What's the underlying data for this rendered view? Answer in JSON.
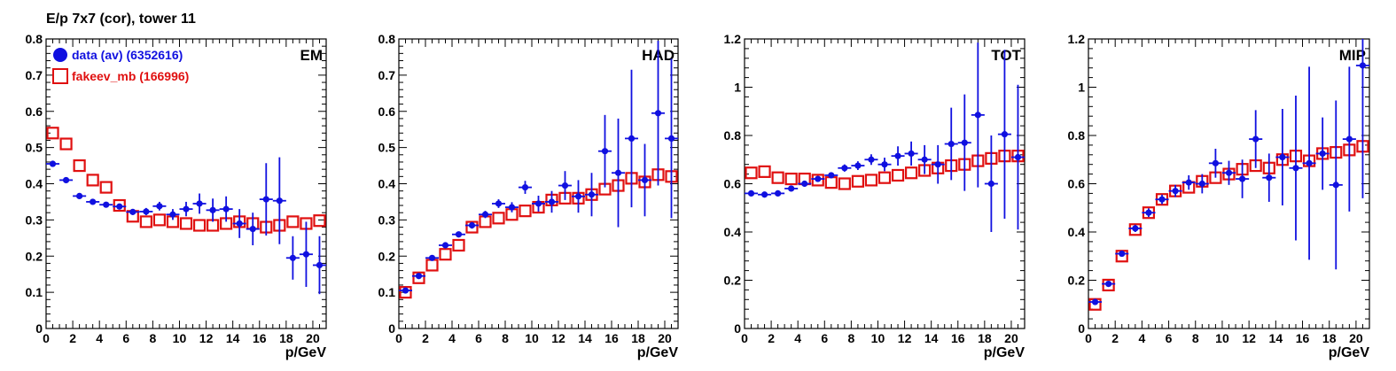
{
  "page_title": "E/p 7x7 (cor), tower 11",
  "legend": [
    {
      "label": "data (av) (6352616)",
      "color": "#1010e0",
      "marker": "filled-circle"
    },
    {
      "label": "fakeev_mb (166996)",
      "color": "#e01010",
      "marker": "open-square"
    }
  ],
  "chart_data": [
    {
      "type": "scatter",
      "title": "EM",
      "xlabel": "p/GeV",
      "ylabel": "",
      "xlim": [
        0,
        21
      ],
      "ylim": [
        0,
        0.8
      ],
      "xticks": [
        0,
        2,
        4,
        6,
        8,
        10,
        12,
        14,
        16,
        18,
        20
      ],
      "yticks": [
        0,
        0.1,
        0.2,
        0.3,
        0.4,
        0.5,
        0.6,
        0.7,
        0.8
      ],
      "ytick_labels": [
        "0",
        "0.1",
        "0.2",
        "0.3",
        "0.4",
        "0.5",
        "0.6",
        "0.7",
        "0.8"
      ],
      "series": [
        {
          "name": "data (av) (6352616)",
          "x": [
            0.5,
            1.5,
            2.5,
            3.5,
            4.5,
            5.5,
            6.5,
            7.5,
            8.5,
            9.5,
            10.5,
            11.5,
            12.5,
            13.5,
            14.5,
            15.5,
            16.5,
            17.5,
            18.5,
            19.5,
            20.5
          ],
          "y": [
            0.455,
            0.41,
            0.366,
            0.35,
            0.342,
            0.337,
            0.322,
            0.323,
            0.338,
            0.315,
            0.33,
            0.345,
            0.327,
            0.33,
            0.29,
            0.275,
            0.357,
            0.353,
            0.195,
            0.205,
            0.175
          ],
          "err": [
            0.005,
            0.004,
            0.004,
            0.004,
            0.005,
            0.006,
            0.008,
            0.01,
            0.012,
            0.015,
            0.02,
            0.028,
            0.032,
            0.035,
            0.04,
            0.045,
            0.1,
            0.12,
            0.06,
            0.09,
            0.08
          ]
        },
        {
          "name": "fakeev_mb (166996)",
          "x": [
            0.5,
            1.5,
            2.5,
            3.5,
            4.5,
            5.5,
            6.5,
            7.5,
            8.5,
            9.5,
            10.5,
            11.5,
            12.5,
            13.5,
            14.5,
            15.5,
            16.5,
            17.5,
            18.5,
            19.5,
            20.5
          ],
          "y": [
            0.54,
            0.51,
            0.45,
            0.41,
            0.39,
            0.34,
            0.31,
            0.295,
            0.3,
            0.295,
            0.29,
            0.285,
            0.285,
            0.29,
            0.295,
            0.29,
            0.28,
            0.285,
            0.295,
            0.29,
            0.298
          ],
          "err": [
            0,
            0,
            0,
            0,
            0,
            0,
            0,
            0,
            0,
            0,
            0,
            0,
            0,
            0,
            0,
            0,
            0,
            0,
            0,
            0,
            0
          ]
        }
      ]
    },
    {
      "type": "scatter",
      "title": "HAD",
      "xlabel": "p/GeV",
      "ylabel": "",
      "xlim": [
        0,
        21
      ],
      "ylim": [
        0,
        0.8
      ],
      "xticks": [
        0,
        2,
        4,
        6,
        8,
        10,
        12,
        14,
        16,
        18,
        20
      ],
      "yticks": [
        0,
        0.1,
        0.2,
        0.3,
        0.4,
        0.5,
        0.6,
        0.7,
        0.8
      ],
      "ytick_labels": [
        "0",
        "0.1",
        "0.2",
        "0.3",
        "0.4",
        "0.5",
        "0.6",
        "0.7",
        "0.8"
      ],
      "series": [
        {
          "name": "data (av) (6352616)",
          "x": [
            0.5,
            1.5,
            2.5,
            3.5,
            4.5,
            5.5,
            6.5,
            7.5,
            8.5,
            9.5,
            10.5,
            11.5,
            12.5,
            13.5,
            14.5,
            15.5,
            16.5,
            17.5,
            18.5,
            19.5,
            20.5
          ],
          "y": [
            0.105,
            0.145,
            0.195,
            0.23,
            0.26,
            0.285,
            0.315,
            0.345,
            0.335,
            0.39,
            0.345,
            0.35,
            0.395,
            0.365,
            0.37,
            0.49,
            0.43,
            0.525,
            0.41,
            0.595,
            0.525
          ],
          "err": [
            0.003,
            0.004,
            0.005,
            0.006,
            0.007,
            0.009,
            0.01,
            0.012,
            0.014,
            0.018,
            0.022,
            0.03,
            0.04,
            0.045,
            0.06,
            0.1,
            0.15,
            0.19,
            0.1,
            0.2,
            0.22
          ]
        },
        {
          "name": "fakeev_mb (166996)",
          "x": [
            0.5,
            1.5,
            2.5,
            3.5,
            4.5,
            5.5,
            6.5,
            7.5,
            8.5,
            9.5,
            10.5,
            11.5,
            12.5,
            13.5,
            14.5,
            15.5,
            16.5,
            17.5,
            18.5,
            19.5,
            20.5
          ],
          "y": [
            0.1,
            0.14,
            0.175,
            0.205,
            0.23,
            0.28,
            0.295,
            0.305,
            0.315,
            0.325,
            0.335,
            0.355,
            0.36,
            0.36,
            0.37,
            0.385,
            0.395,
            0.415,
            0.405,
            0.425,
            0.42
          ],
          "err": [
            0,
            0,
            0,
            0,
            0,
            0,
            0,
            0,
            0,
            0,
            0,
            0,
            0,
            0,
            0,
            0,
            0,
            0,
            0,
            0,
            0
          ]
        }
      ]
    },
    {
      "type": "scatter",
      "title": "TOT",
      "xlabel": "p/GeV",
      "ylabel": "",
      "xlim": [
        0,
        21
      ],
      "ylim": [
        0,
        1.2
      ],
      "xticks": [
        0,
        2,
        4,
        6,
        8,
        10,
        12,
        14,
        16,
        18,
        20
      ],
      "yticks": [
        0,
        0.2,
        0.4,
        0.6,
        0.8,
        1.0,
        1.2
      ],
      "ytick_labels": [
        "0",
        "0.2",
        "0.4",
        "0.6",
        "0.8",
        "1",
        "1.2"
      ],
      "series": [
        {
          "name": "data (av) (6352616)",
          "x": [
            0.5,
            1.5,
            2.5,
            3.5,
            4.5,
            5.5,
            6.5,
            7.5,
            8.5,
            9.5,
            10.5,
            11.5,
            12.5,
            13.5,
            14.5,
            15.5,
            16.5,
            17.5,
            18.5,
            19.5,
            20.5
          ],
          "y": [
            0.56,
            0.555,
            0.56,
            0.58,
            0.6,
            0.62,
            0.635,
            0.665,
            0.675,
            0.7,
            0.68,
            0.715,
            0.725,
            0.7,
            0.68,
            0.765,
            0.77,
            0.885,
            0.6,
            0.805,
            0.71
          ],
          "err": [
            0.005,
            0.005,
            0.006,
            0.007,
            0.008,
            0.01,
            0.012,
            0.015,
            0.018,
            0.022,
            0.028,
            0.04,
            0.05,
            0.06,
            0.08,
            0.15,
            0.2,
            0.3,
            0.2,
            0.35,
            0.3
          ]
        },
        {
          "name": "fakeev_mb (166996)",
          "x": [
            0.5,
            1.5,
            2.5,
            3.5,
            4.5,
            5.5,
            6.5,
            7.5,
            8.5,
            9.5,
            10.5,
            11.5,
            12.5,
            13.5,
            14.5,
            15.5,
            16.5,
            17.5,
            18.5,
            19.5,
            20.5
          ],
          "y": [
            0.645,
            0.65,
            0.625,
            0.62,
            0.62,
            0.615,
            0.605,
            0.6,
            0.61,
            0.615,
            0.625,
            0.635,
            0.645,
            0.655,
            0.665,
            0.675,
            0.68,
            0.695,
            0.705,
            0.715,
            0.715
          ],
          "err": [
            0,
            0,
            0,
            0,
            0,
            0,
            0,
            0,
            0,
            0,
            0,
            0,
            0,
            0,
            0,
            0,
            0,
            0,
            0,
            0,
            0
          ]
        }
      ]
    },
    {
      "type": "scatter",
      "title": "MIP",
      "xlabel": "p/GeV",
      "ylabel": "",
      "xlim": [
        0,
        21
      ],
      "ylim": [
        0,
        1.2
      ],
      "xticks": [
        0,
        2,
        4,
        6,
        8,
        10,
        12,
        14,
        16,
        18,
        20
      ],
      "yticks": [
        0,
        0.2,
        0.4,
        0.6,
        0.8,
        1.0,
        1.2
      ],
      "ytick_labels": [
        "0",
        "0.2",
        "0.4",
        "0.6",
        "0.8",
        "1",
        "1.2"
      ],
      "series": [
        {
          "name": "data (av) (6352616)",
          "x": [
            0.5,
            1.5,
            2.5,
            3.5,
            4.5,
            5.5,
            6.5,
            7.5,
            8.5,
            9.5,
            10.5,
            11.5,
            12.5,
            13.5,
            14.5,
            15.5,
            16.5,
            17.5,
            18.5,
            19.5,
            20.5
          ],
          "y": [
            0.11,
            0.185,
            0.31,
            0.415,
            0.48,
            0.535,
            0.57,
            0.605,
            0.6,
            0.685,
            0.645,
            0.62,
            0.785,
            0.625,
            0.71,
            0.665,
            0.685,
            0.725,
            0.595,
            0.785,
            1.09
          ],
          "err": [
            0.005,
            0.008,
            0.012,
            0.015,
            0.018,
            0.02,
            0.025,
            0.03,
            0.04,
            0.06,
            0.05,
            0.08,
            0.12,
            0.1,
            0.2,
            0.3,
            0.4,
            0.15,
            0.35,
            0.3,
            0.55
          ]
        },
        {
          "name": "fakeev_mb (166996)",
          "x": [
            0.5,
            1.5,
            2.5,
            3.5,
            4.5,
            5.5,
            6.5,
            7.5,
            8.5,
            9.5,
            10.5,
            11.5,
            12.5,
            13.5,
            14.5,
            15.5,
            16.5,
            17.5,
            18.5,
            19.5,
            20.5
          ],
          "y": [
            0.1,
            0.18,
            0.3,
            0.41,
            0.48,
            0.535,
            0.57,
            0.585,
            0.61,
            0.625,
            0.64,
            0.66,
            0.675,
            0.665,
            0.7,
            0.715,
            0.695,
            0.725,
            0.73,
            0.74,
            0.755
          ],
          "err": [
            0,
            0,
            0,
            0,
            0,
            0,
            0,
            0,
            0,
            0,
            0,
            0,
            0,
            0,
            0,
            0,
            0,
            0,
            0,
            0,
            0
          ]
        }
      ]
    }
  ]
}
